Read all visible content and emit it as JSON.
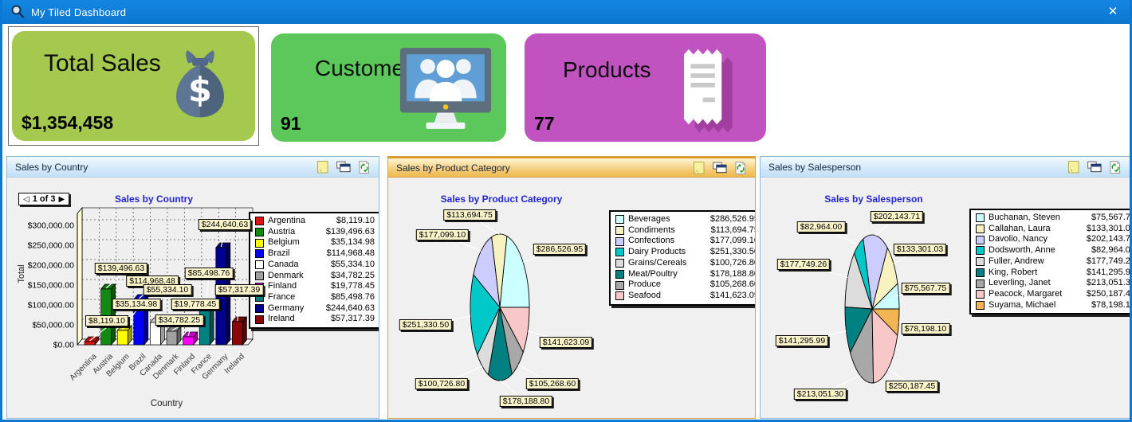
{
  "window": {
    "title": "My Tiled Dashboard",
    "close_label": "✕",
    "accent_color": "#0b78d4"
  },
  "tiles": [
    {
      "title": "Total Sales",
      "value": "$1,354,458",
      "color": "#a4c94e",
      "icon": "money-bag-icon",
      "selected": true
    },
    {
      "title": "Customers",
      "value": "91",
      "color": "#5cc85c",
      "icon": "monitor-users-icon",
      "selected": false
    },
    {
      "title": "Products",
      "value": "77",
      "color": "#c153c1",
      "icon": "receipt-icon",
      "selected": false
    }
  ],
  "panels": [
    {
      "header": "Sales by Country",
      "active": false,
      "header_icons": [
        "sticky-note",
        "cascade-windows",
        "refresh"
      ],
      "pager": {
        "prev_glyph": "◁",
        "label": "1 of 3",
        "next_glyph": "▶"
      }
    },
    {
      "header": "Sales by Product Category",
      "active": true,
      "header_icons": [
        "sticky-note",
        "cascade-windows",
        "refresh"
      ]
    },
    {
      "header": "Sales by Salesperson",
      "active": false,
      "header_icons": [
        "sticky-note",
        "cascade-windows",
        "refresh"
      ]
    }
  ],
  "chart_data": [
    {
      "type": "bar",
      "title": "Sales by Country",
      "xlabel": "Country",
      "ylabel": "Total",
      "ylim": [
        0,
        350000
      ],
      "grid": true,
      "legend_position": "right",
      "effect": "3d",
      "yticks": [
        "$0.00",
        "$50,000.00",
        "$100,000.00",
        "$150,000.00",
        "$200,000.00",
        "$250,000.00",
        "$300,000.00"
      ],
      "categories": [
        "Argentina",
        "Austria",
        "Belgium",
        "Brazil",
        "Canada",
        "Denmark",
        "Finland",
        "France",
        "Germany",
        "Ireland"
      ],
      "values": [
        8119.1,
        139496.63,
        35134.98,
        114968.48,
        55334.1,
        34782.25,
        19778.45,
        85498.76,
        244640.63,
        57317.39
      ],
      "value_labels": [
        "$8,119.10",
        "$139,496.63",
        "$35,134.98",
        "$114,968.48",
        "$55,334.10",
        "$34,782.25",
        "$19,778.45",
        "$85,498.76",
        "$244,640.63",
        "$57,317.39"
      ],
      "colors": [
        "#e31212",
        "#128a12",
        "#ffff00",
        "#0000f5",
        "#ffffff",
        "#a0a0a0",
        "#ff00ff",
        "#008080",
        "#000090",
        "#8d0606"
      ]
    },
    {
      "type": "pie",
      "title": "Sales by Product Category",
      "start_angle": 90,
      "direction": "ccw",
      "legend_position": "right",
      "categories": [
        "Beverages",
        "Condiments",
        "Confections",
        "Dairy Products",
        "Grains/Cereals",
        "Meat/Poultry",
        "Produce",
        "Seafood"
      ],
      "values": [
        286526.95,
        113694.75,
        177099.1,
        251330.5,
        100726.8,
        178188.8,
        105268.6,
        141623.09
      ],
      "value_labels": [
        "$286,526.95",
        "$113,694.75",
        "$177,099.10",
        "$251,330.50",
        "$100,726.80",
        "$178,188.80",
        "$105,268.60",
        "$141,623.09"
      ],
      "colors": [
        "#ccffff",
        "#f8f2c0",
        "#ccccff",
        "#00c8c8",
        "#dcdcdc",
        "#008080",
        "#a8a8a8",
        "#f8c8c8"
      ]
    },
    {
      "type": "pie",
      "title": "Sales by Salesperson",
      "start_angle": 90,
      "direction": "ccw",
      "legend_position": "right",
      "categories": [
        "Buchanan, Steven",
        "Callahan, Laura",
        "Davolio, Nancy",
        "Dodsworth, Anne",
        "Fuller, Andrew",
        "King, Robert",
        "Leverling, Janet",
        "Peacock, Margaret",
        "Suyama, Michael"
      ],
      "values": [
        75567.75,
        133301.03,
        202143.71,
        82964.0,
        177749.26,
        141295.99,
        213051.3,
        250187.45,
        78198.1
      ],
      "value_labels": [
        "$75,567.75",
        "$133,301.03",
        "$202,143.71",
        "$82,964.00",
        "$177,749.26",
        "$141,295.99",
        "$213,051.30",
        "$250,187.45",
        "$78,198.10"
      ],
      "colors": [
        "#ccffff",
        "#f8f2c0",
        "#ccccff",
        "#00c8c8",
        "#dcdcdc",
        "#008080",
        "#a8a8a8",
        "#f8c8c8",
        "#f3b552"
      ]
    }
  ]
}
